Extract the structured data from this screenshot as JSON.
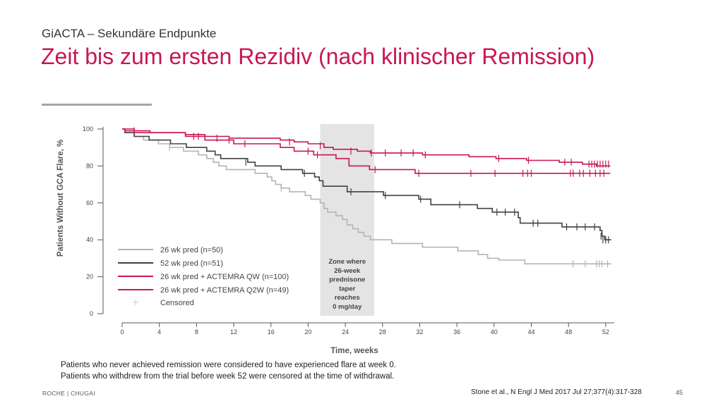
{
  "header": {
    "subtitle": "GiACTA – Sekundäre Endpunkte",
    "title": "Zeit bis zum ersten Rezidiv (nach klinischer Remission)"
  },
  "footnotes": [
    "Patients who never achieved remission were considered to have experienced flare at week 0.",
    "Patients who withdrew from the trial before week 52 were censored at the time of withdrawal."
  ],
  "footer": {
    "company": "ROCHE | CHUGAI",
    "reference": "Stone et al., N Engl J Med 2017 Jul 27;377(4):317-328",
    "page": "45"
  },
  "chart_data": {
    "type": "line",
    "step": true,
    "ylabel": "Patients Without GCA Flare, %",
    "xlabel": "Time, weeks",
    "xlim": [
      0,
      53
    ],
    "ylim": [
      0,
      100
    ],
    "xticks": [
      0,
      4,
      8,
      12,
      16,
      20,
      24,
      28,
      32,
      36,
      40,
      44,
      48,
      52
    ],
    "yticks": [
      0,
      20,
      40,
      60,
      80,
      100
    ],
    "shaded_zone": {
      "x_from": 21.3,
      "x_to": 27.1,
      "label": [
        "Zone where",
        "26-week",
        "prednisone",
        "taper",
        "reaches",
        "0 mg/day"
      ]
    },
    "legend_position": "bottom-left",
    "censored_label": "Censored",
    "colors": {
      "pred26": "#b4b4b4",
      "pred52": "#404040",
      "qw": "#c8174f",
      "q2w": "#c8174f",
      "axis": "#555555",
      "zone": "#e4e4e4",
      "censored_marker": "#c8c8c8"
    },
    "series": [
      {
        "name": "26 wk pred (n=50)",
        "color": "#b4b4b4",
        "points": [
          [
            0,
            100
          ],
          [
            0.3,
            98
          ],
          [
            1.3,
            96
          ],
          [
            2.3,
            94
          ],
          [
            3.9,
            92
          ],
          [
            5.1,
            90
          ],
          [
            6.6,
            88
          ],
          [
            8.2,
            86
          ],
          [
            9.1,
            84
          ],
          [
            9.8,
            82
          ],
          [
            10.4,
            80
          ],
          [
            11.2,
            78
          ],
          [
            14.3,
            76
          ],
          [
            15.6,
            74
          ],
          [
            16.1,
            72
          ],
          [
            16.5,
            70
          ],
          [
            17.1,
            68
          ],
          [
            18,
            66
          ],
          [
            19.7,
            64
          ],
          [
            20.3,
            62
          ],
          [
            21.3,
            60
          ],
          [
            21.7,
            57
          ],
          [
            22.1,
            55
          ],
          [
            23,
            53
          ],
          [
            23.7,
            51
          ],
          [
            24.2,
            48
          ],
          [
            24.8,
            46
          ],
          [
            25.4,
            44
          ],
          [
            26,
            42
          ],
          [
            26.7,
            40
          ],
          [
            29,
            38
          ],
          [
            32.3,
            36
          ],
          [
            36.1,
            34
          ],
          [
            38.3,
            32
          ],
          [
            39.3,
            30
          ],
          [
            40.5,
            29
          ],
          [
            43.3,
            27
          ],
          [
            52.6,
            27
          ]
        ],
        "censored": [
          [
            5.1,
            90
          ],
          [
            17.1,
            68
          ],
          [
            48.5,
            27
          ],
          [
            49.8,
            27
          ],
          [
            51,
            27
          ],
          [
            51.3,
            27
          ],
          [
            51.6,
            27
          ],
          [
            52.2,
            27
          ]
        ]
      },
      {
        "name": "52 wk pred (n=51)",
        "color": "#404040",
        "points": [
          [
            0,
            100
          ],
          [
            0.3,
            98
          ],
          [
            1.3,
            96
          ],
          [
            2.9,
            94
          ],
          [
            5.2,
            92
          ],
          [
            6.9,
            90
          ],
          [
            9.1,
            88
          ],
          [
            10,
            86
          ],
          [
            10.6,
            84
          ],
          [
            13.5,
            82
          ],
          [
            14.3,
            80
          ],
          [
            17.1,
            78
          ],
          [
            19.4,
            76
          ],
          [
            20.7,
            74
          ],
          [
            21.2,
            72
          ],
          [
            21.6,
            69
          ],
          [
            24.2,
            66
          ],
          [
            28.1,
            64
          ],
          [
            31.9,
            62
          ],
          [
            33.2,
            59
          ],
          [
            38.2,
            57
          ],
          [
            39.8,
            55
          ],
          [
            42.6,
            52
          ],
          [
            42.8,
            49
          ],
          [
            47.3,
            47
          ],
          [
            51.4,
            45
          ],
          [
            51.6,
            42
          ],
          [
            51.9,
            40
          ],
          [
            52.6,
            40
          ]
        ],
        "censored": [
          [
            13.3,
            82
          ],
          [
            19.6,
            76
          ],
          [
            24.6,
            66
          ],
          [
            28.3,
            64
          ],
          [
            32.1,
            62
          ],
          [
            36.3,
            59
          ],
          [
            40.3,
            55
          ],
          [
            41.2,
            55
          ],
          [
            42.2,
            55
          ],
          [
            44.2,
            49
          ],
          [
            44.7,
            49
          ],
          [
            47.8,
            47
          ],
          [
            48.9,
            47
          ],
          [
            49.8,
            47
          ],
          [
            50.8,
            47
          ],
          [
            51.5,
            42
          ],
          [
            51.7,
            40
          ],
          [
            52,
            40
          ],
          [
            52.3,
            40
          ]
        ]
      },
      {
        "name": "26 wk pred + ACTEMRA QW (n=100)",
        "color": "#c8174f",
        "points": [
          [
            0,
            100
          ],
          [
            0.3,
            99
          ],
          [
            3,
            98
          ],
          [
            6.8,
            97
          ],
          [
            8.9,
            96
          ],
          [
            11.5,
            95
          ],
          [
            17,
            94
          ],
          [
            18.5,
            93
          ],
          [
            20,
            92
          ],
          [
            21.7,
            90
          ],
          [
            22.7,
            89
          ],
          [
            25.3,
            88
          ],
          [
            26.7,
            87
          ],
          [
            32.3,
            86
          ],
          [
            37.3,
            85
          ],
          [
            40.2,
            84
          ],
          [
            43.5,
            83
          ],
          [
            47,
            82
          ],
          [
            49.5,
            81
          ],
          [
            51,
            80
          ],
          [
            52.5,
            80
          ]
        ],
        "censored": [
          [
            1.3,
            99
          ],
          [
            10.2,
            95
          ],
          [
            18,
            93
          ],
          [
            21.3,
            91
          ],
          [
            24.6,
            88
          ],
          [
            26.8,
            87
          ],
          [
            28.3,
            87
          ],
          [
            30,
            87
          ],
          [
            31.3,
            87
          ],
          [
            32.6,
            86
          ],
          [
            40.5,
            84
          ],
          [
            43.7,
            83
          ],
          [
            47.6,
            82
          ],
          [
            48.3,
            82
          ],
          [
            50.2,
            81
          ],
          [
            50.5,
            81
          ],
          [
            50.8,
            81
          ],
          [
            51.1,
            81
          ],
          [
            51.4,
            81
          ],
          [
            51.7,
            81
          ],
          [
            52,
            81
          ],
          [
            52.3,
            81
          ]
        ]
      },
      {
        "name": "26 wk pred + ACTEMRA Q2W (n=49)",
        "color": "#c8174f",
        "points": [
          [
            0,
            100
          ],
          [
            1.3,
            98
          ],
          [
            6.8,
            96
          ],
          [
            8.9,
            94
          ],
          [
            12,
            92
          ],
          [
            17,
            90
          ],
          [
            18.5,
            88
          ],
          [
            20.6,
            86
          ],
          [
            23,
            84
          ],
          [
            24.4,
            80
          ],
          [
            26.6,
            78
          ],
          [
            31.5,
            76
          ],
          [
            52.5,
            76
          ]
        ],
        "censored": [
          [
            7.7,
            96
          ],
          [
            8.2,
            96
          ],
          [
            11.5,
            94
          ],
          [
            13.2,
            92
          ],
          [
            20,
            88
          ],
          [
            21,
            86
          ],
          [
            27.2,
            78
          ],
          [
            31.9,
            76
          ],
          [
            37.5,
            76
          ],
          [
            40.1,
            76
          ],
          [
            43.1,
            76
          ],
          [
            43.6,
            76
          ],
          [
            44,
            76
          ],
          [
            48.2,
            76
          ],
          [
            48.5,
            76
          ],
          [
            49.2,
            76
          ],
          [
            49.6,
            76
          ],
          [
            50.3,
            76
          ],
          [
            50.9,
            76
          ],
          [
            51.4,
            76
          ],
          [
            51.8,
            76
          ]
        ]
      }
    ]
  }
}
